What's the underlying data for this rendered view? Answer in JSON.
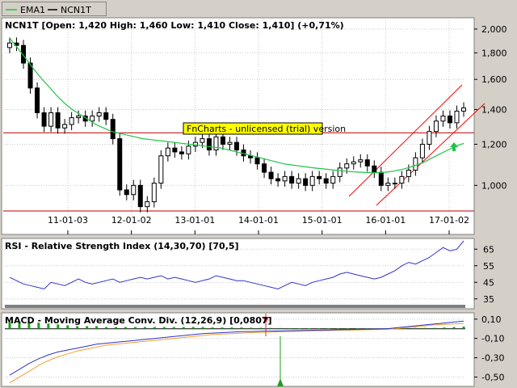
{
  "legend": [
    {
      "label": "EMA1",
      "color": "#22c24a"
    },
    {
      "label": "NCN1T",
      "color": "#000000"
    }
  ],
  "price_panel": {
    "title": "NCN1T [Open: 1,420  High: 1,460  Low: 1,410  Close: 1,410] (+0,71%)",
    "watermark": "FnCharts - unlicensed (trial) version",
    "y_ticks": [
      "2,000",
      "1,800",
      "1,600",
      "1,400",
      "1,200",
      "1,000"
    ],
    "x_ticks": [
      "11-01-03",
      "12-01-02",
      "13-01-01",
      "14-01-01",
      "15-01-01",
      "16-01-01",
      "17-01-02"
    ]
  },
  "rsi_panel": {
    "title": "RSI - Relative Strength Index (14,30,70) [70,5]",
    "y_ticks": [
      "65",
      "55",
      "45",
      "35"
    ]
  },
  "macd_panel": {
    "title": "MACD - Moving Average Conv. Div. (12,26,9) [0,0807]",
    "y_ticks": [
      "0,10",
      "-0,10",
      "-0,30",
      "-0,50"
    ]
  },
  "colors": {
    "panel_bg": "#ffffff",
    "frame_bg": "#d4d0c8",
    "ema": "#22c24a",
    "support": "#c83232",
    "channel": "#ff0000",
    "rsi": "#3232c8",
    "macd": "#3232c8",
    "signal": "#f0a030",
    "histogram": "#1e9e1e"
  },
  "chart_data": [
    {
      "type": "candlestick",
      "title": "NCN1T [Open: 1,420  High: 1,460  Low: 1,410  Close: 1,410] (+0,71%)",
      "x_tick_labels": [
        "11-01-03",
        "12-01-02",
        "13-01-01",
        "14-01-01",
        "15-01-01",
        "16-01-01",
        "17-01-02"
      ],
      "y_scale": "log",
      "ylim": [
        880,
        2080
      ],
      "series": [
        {
          "name": "EMA1",
          "type": "line",
          "values": [
            1920,
            1840,
            1760,
            1680,
            1610,
            1550,
            1490,
            1440,
            1400,
            1370,
            1340,
            1310,
            1290,
            1270,
            1260,
            1250,
            1240,
            1230,
            1225,
            1220,
            1215,
            1210,
            1205,
            1200,
            1195,
            1190,
            1185,
            1180,
            1170,
            1160,
            1150,
            1140,
            1130,
            1120,
            1110,
            1100,
            1095,
            1090,
            1085,
            1080,
            1076,
            1072,
            1068,
            1065,
            1062,
            1060,
            1058,
            1058,
            1060,
            1065,
            1072,
            1082,
            1095,
            1110,
            1130,
            1150,
            1170,
            1190,
            1205
          ]
        },
        {
          "name": "NCN1T",
          "type": "candlestick",
          "close": [
            1880,
            1860,
            1720,
            1540,
            1380,
            1300,
            1380,
            1290,
            1310,
            1350,
            1360,
            1330,
            1360,
            1380,
            1340,
            1230,
            980,
            960,
            1000,
            910,
            930,
            1010,
            1140,
            1180,
            1160,
            1150,
            1190,
            1210,
            1230,
            1170,
            1240,
            1200,
            1210,
            1170,
            1140,
            1130,
            1100,
            1060,
            1030,
            1020,
            1040,
            1010,
            1030,
            1000,
            1040,
            1030,
            1010,
            1040,
            1080,
            1100,
            1110,
            1120,
            1090,
            1060,
            1000,
            1010,
            1010,
            1040,
            1070,
            1130,
            1200,
            1270,
            1330,
            1360,
            1320,
            1390,
            1410
          ]
        }
      ],
      "annotations": [
        "support lines at 1,262 and 880",
        "rising channel",
        "green up arrow"
      ]
    },
    {
      "type": "line",
      "title": "RSI - Relative Strength Index (14,30,70) [70,5]",
      "y_scale": "linear",
      "ylim": [
        30,
        70
      ],
      "series": [
        {
          "name": "RSI",
          "values": [
            48,
            46,
            44,
            43,
            42,
            41,
            45,
            44,
            43,
            45,
            47,
            45,
            44,
            45,
            46,
            47,
            45,
            46,
            47,
            48,
            47,
            48,
            49,
            47,
            48,
            47,
            46,
            45,
            46,
            47,
            49,
            48,
            47,
            46,
            46,
            45,
            44,
            43,
            42,
            41,
            43,
            45,
            44,
            43,
            45,
            46,
            47,
            48,
            50,
            51,
            50,
            49,
            48,
            47,
            48,
            50,
            52,
            55,
            57,
            56,
            58,
            60,
            63,
            66,
            64,
            65,
            70
          ]
        }
      ]
    },
    {
      "type": "line",
      "title": "MACD - Moving Average Conv. Div. (12,26,9) [0,0807]",
      "y_scale": "linear",
      "ylim": [
        -0.58,
        0.14
      ],
      "series": [
        {
          "name": "MACD",
          "values": [
            -0.48,
            -0.42,
            -0.36,
            -0.31,
            -0.27,
            -0.24,
            -0.22,
            -0.2,
            -0.18,
            -0.16,
            -0.15,
            -0.14,
            -0.13,
            -0.12,
            -0.11,
            -0.1,
            -0.09,
            -0.08,
            -0.07,
            -0.06,
            -0.05,
            -0.045,
            -0.04,
            -0.035,
            -0.03,
            -0.028,
            -0.026,
            -0.024,
            -0.022,
            -0.02,
            -0.018,
            -0.016,
            -0.014,
            -0.012,
            -0.01,
            -0.008,
            -0.006,
            -0.004,
            -0.002,
            0.0,
            0.01,
            0.02,
            0.03,
            0.04,
            0.05,
            0.06,
            0.07,
            0.08
          ]
        },
        {
          "name": "Signal",
          "values": [
            -0.56,
            -0.5,
            -0.44,
            -0.38,
            -0.33,
            -0.29,
            -0.26,
            -0.23,
            -0.21,
            -0.19,
            -0.17,
            -0.16,
            -0.15,
            -0.14,
            -0.13,
            -0.12,
            -0.11,
            -0.1,
            -0.09,
            -0.08,
            -0.07,
            -0.06,
            -0.055,
            -0.05,
            -0.045,
            -0.04,
            -0.037,
            -0.034,
            -0.031,
            -0.028,
            -0.025,
            -0.022,
            -0.02,
            -0.018,
            -0.016,
            -0.014,
            -0.012,
            -0.01,
            -0.008,
            -0.006,
            0.0,
            0.01,
            0.02,
            0.03,
            0.04,
            0.045,
            0.05,
            0.055
          ]
        }
      ]
    }
  ]
}
